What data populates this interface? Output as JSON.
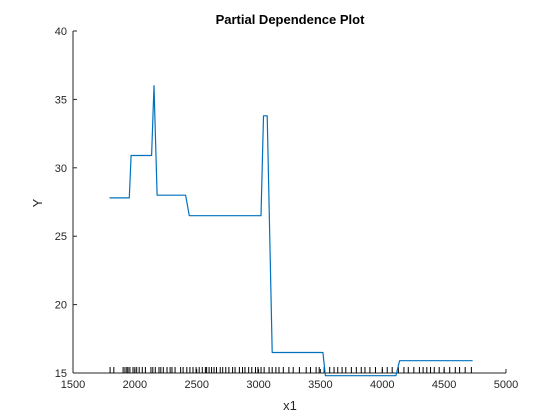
{
  "chart_data": {
    "type": "line",
    "title": "Partial Dependence Plot",
    "xlabel": "x1",
    "ylabel": "Y",
    "xlim": [
      1500,
      5000
    ],
    "ylim": [
      15,
      40
    ],
    "xticks": [
      "1500",
      "2000",
      "2500",
      "3000",
      "3500",
      "4000",
      "4500",
      "5000"
    ],
    "yticks": [
      "15",
      "20",
      "25",
      "30",
      "35",
      "40"
    ],
    "grid": false,
    "line_color": "#0072BD",
    "series": [
      {
        "x": [
          1795,
          1955,
          1970,
          2135,
          2155,
          2180,
          2410,
          2440,
          3020,
          3040,
          3070,
          3110,
          3520,
          3540,
          3560,
          4110,
          4140,
          4730
        ],
        "y": [
          27.8,
          27.8,
          30.9,
          30.9,
          36.0,
          28.0,
          28.0,
          26.5,
          26.5,
          33.8,
          33.8,
          16.5,
          16.5,
          14.8,
          14.8,
          14.8,
          15.9,
          15.9
        ]
      }
    ],
    "rug": {
      "color": "#000000",
      "x": [
        1800,
        1830,
        1905,
        1920,
        1935,
        1945,
        1960,
        1985,
        2000,
        2015,
        2035,
        2060,
        2085,
        2130,
        2145,
        2165,
        2195,
        2210,
        2230,
        2260,
        2285,
        2300,
        2325,
        2370,
        2390,
        2420,
        2445,
        2470,
        2495,
        2520,
        2545,
        2570,
        2580,
        2600,
        2620,
        2640,
        2660,
        2690,
        2710,
        2735,
        2760,
        2790,
        2810,
        2845,
        2870,
        2890,
        2920,
        2945,
        2975,
        2995,
        3020,
        3045,
        3085,
        3110,
        3140,
        3165,
        3200,
        3245,
        3280,
        3330,
        3385,
        3420,
        3465,
        3490,
        3530,
        3575,
        3610,
        3640,
        3675,
        3705,
        3750,
        3790,
        3830,
        3860,
        3900,
        3945,
        4000,
        4040,
        4080,
        4130,
        4175,
        4210,
        4255,
        4300,
        4330,
        4360,
        4390,
        4420,
        4460,
        4500,
        4545,
        4590,
        4625,
        4670,
        4720
      ]
    }
  }
}
